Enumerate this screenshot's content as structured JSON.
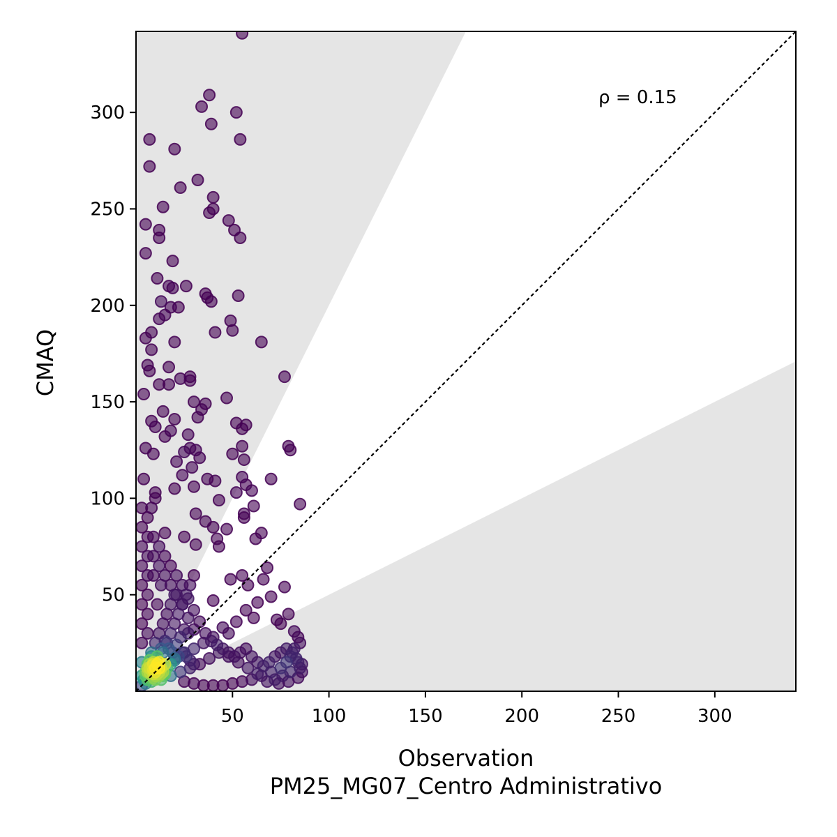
{
  "chart_data": {
    "type": "scatter",
    "xlabel": "Observation",
    "xlabel2": "PM25_MG07_Centro Administrativo",
    "ylabel": "CMAQ",
    "xlim": [
      0,
      342
    ],
    "ylim": [
      0,
      342
    ],
    "xticks": [
      50,
      100,
      150,
      200,
      250,
      300
    ],
    "yticks": [
      50,
      100,
      150,
      200,
      250,
      300
    ],
    "annotation": "ρ = 0.15",
    "reference_line": "1:1 dashed",
    "shaded_bands": "outside factor-of-2 envelope (y > 2x and y < x/2)",
    "colormap": "viridis (point density)",
    "colors": {
      "low_density": "#440154",
      "mid_density": "#21918c",
      "high_density": "#fde725",
      "shade": "#e5e5e5"
    },
    "points": [
      [
        55,
        341
      ],
      [
        38,
        309
      ],
      [
        34,
        303
      ],
      [
        52,
        300
      ],
      [
        39,
        294
      ],
      [
        7,
        286
      ],
      [
        54,
        286
      ],
      [
        20,
        281
      ],
      [
        7,
        272
      ],
      [
        32,
        265
      ],
      [
        23,
        261
      ],
      [
        40,
        256
      ],
      [
        14,
        251
      ],
      [
        40,
        250
      ],
      [
        38,
        248
      ],
      [
        48,
        244
      ],
      [
        5,
        242
      ],
      [
        51,
        239
      ],
      [
        12,
        239
      ],
      [
        12,
        235
      ],
      [
        54,
        235
      ],
      [
        5,
        227
      ],
      [
        19,
        223
      ],
      [
        11,
        214
      ],
      [
        26,
        210
      ],
      [
        17,
        210
      ],
      [
        19,
        209
      ],
      [
        36,
        206
      ],
      [
        37,
        204
      ],
      [
        53,
        205
      ],
      [
        39,
        202
      ],
      [
        13,
        202
      ],
      [
        18,
        199
      ],
      [
        22,
        199
      ],
      [
        12,
        193
      ],
      [
        49,
        192
      ],
      [
        15,
        195
      ],
      [
        50,
        187
      ],
      [
        41,
        186
      ],
      [
        8,
        186
      ],
      [
        65,
        181
      ],
      [
        20,
        181
      ],
      [
        5,
        183
      ],
      [
        8,
        177
      ],
      [
        6,
        169
      ],
      [
        17,
        168
      ],
      [
        7,
        166
      ],
      [
        77,
        163
      ],
      [
        28,
        163
      ],
      [
        23,
        162
      ],
      [
        28,
        161
      ],
      [
        12,
        159
      ],
      [
        17,
        159
      ],
      [
        4,
        154
      ],
      [
        47,
        152
      ],
      [
        30,
        150
      ],
      [
        36,
        149
      ],
      [
        34,
        146
      ],
      [
        14,
        145
      ],
      [
        32,
        142
      ],
      [
        52,
        139
      ],
      [
        57,
        138
      ],
      [
        20,
        141
      ],
      [
        8,
        140
      ],
      [
        55,
        136
      ],
      [
        10,
        137
      ],
      [
        18,
        135
      ],
      [
        27,
        133
      ],
      [
        15,
        132
      ],
      [
        79,
        127
      ],
      [
        80,
        125
      ],
      [
        5,
        126
      ],
      [
        9,
        123
      ],
      [
        55,
        127
      ],
      [
        28,
        126
      ],
      [
        31,
        125
      ],
      [
        25,
        124
      ],
      [
        33,
        121
      ],
      [
        56,
        120
      ],
      [
        21,
        119
      ],
      [
        50,
        123
      ],
      [
        29,
        116
      ],
      [
        37,
        110
      ],
      [
        70,
        110
      ],
      [
        41,
        109
      ],
      [
        24,
        112
      ],
      [
        55,
        111
      ],
      [
        57,
        107
      ],
      [
        60,
        104
      ],
      [
        52,
        103
      ],
      [
        43,
        99
      ],
      [
        85,
        97
      ],
      [
        30,
        106
      ],
      [
        20,
        105
      ],
      [
        10,
        103
      ],
      [
        61,
        96
      ],
      [
        56,
        92
      ],
      [
        56,
        90
      ],
      [
        36,
        88
      ],
      [
        31,
        92
      ],
      [
        40,
        85
      ],
      [
        47,
        84
      ],
      [
        65,
        82
      ],
      [
        62,
        79
      ],
      [
        42,
        79
      ],
      [
        43,
        75
      ],
      [
        31,
        76
      ],
      [
        25,
        80
      ],
      [
        15,
        82
      ],
      [
        68,
        64
      ],
      [
        66,
        58
      ],
      [
        58,
        55
      ],
      [
        49,
        58
      ],
      [
        55,
        60
      ],
      [
        77,
        54
      ],
      [
        70,
        49
      ],
      [
        40,
        47
      ],
      [
        63,
        46
      ],
      [
        57,
        42
      ],
      [
        61,
        38
      ],
      [
        73,
        37
      ],
      [
        75,
        35
      ],
      [
        79,
        40
      ],
      [
        52,
        36
      ],
      [
        45,
        33
      ],
      [
        48,
        30
      ],
      [
        40,
        28
      ],
      [
        35,
        25
      ],
      [
        30,
        22
      ],
      [
        25,
        20
      ],
      [
        20,
        17
      ],
      [
        15,
        14
      ],
      [
        82,
        31
      ],
      [
        84,
        28
      ],
      [
        85,
        25
      ],
      [
        82,
        22
      ],
      [
        80,
        18
      ],
      [
        78,
        15
      ],
      [
        75,
        12
      ],
      [
        70,
        10
      ],
      [
        65,
        8
      ],
      [
        60,
        6
      ],
      [
        55,
        5
      ],
      [
        50,
        4
      ],
      [
        45,
        3
      ],
      [
        40,
        3
      ],
      [
        35,
        3
      ],
      [
        30,
        4
      ],
      [
        25,
        5
      ],
      [
        85,
        12
      ],
      [
        84,
        15
      ],
      [
        80,
        10
      ],
      [
        76,
        8
      ],
      [
        72,
        6
      ],
      [
        68,
        5
      ],
      [
        63,
        9
      ],
      [
        58,
        12
      ],
      [
        53,
        15
      ],
      [
        48,
        18
      ],
      [
        43,
        20
      ],
      [
        38,
        17
      ],
      [
        33,
        14
      ],
      [
        28,
        12
      ],
      [
        23,
        10
      ],
      [
        18,
        8
      ],
      [
        13,
        6
      ],
      [
        8,
        5
      ],
      [
        5,
        4
      ],
      [
        3,
        3
      ],
      [
        10,
        10
      ],
      [
        12,
        15
      ],
      [
        14,
        20
      ],
      [
        16,
        25
      ],
      [
        18,
        30
      ],
      [
        20,
        35
      ],
      [
        22,
        40
      ],
      [
        24,
        45
      ],
      [
        26,
        50
      ],
      [
        28,
        55
      ],
      [
        30,
        60
      ],
      [
        6,
        30
      ],
      [
        6,
        40
      ],
      [
        6,
        50
      ],
      [
        6,
        60
      ],
      [
        6,
        70
      ],
      [
        6,
        80
      ],
      [
        6,
        90
      ],
      [
        8,
        95
      ],
      [
        10,
        100
      ],
      [
        4,
        110
      ],
      [
        3,
        95
      ],
      [
        3,
        85
      ],
      [
        3,
        75
      ],
      [
        3,
        65
      ],
      [
        3,
        55
      ],
      [
        3,
        45
      ],
      [
        3,
        35
      ],
      [
        3,
        25
      ],
      [
        3,
        15
      ],
      [
        3,
        8
      ],
      [
        9,
        60
      ],
      [
        9,
        70
      ],
      [
        9,
        80
      ],
      [
        12,
        75
      ],
      [
        12,
        65
      ],
      [
        15,
        70
      ],
      [
        15,
        60
      ],
      [
        18,
        65
      ],
      [
        18,
        55
      ],
      [
        21,
        60
      ],
      [
        21,
        50
      ],
      [
        24,
        55
      ],
      [
        24,
        45
      ],
      [
        27,
        48
      ],
      [
        27,
        38
      ],
      [
        30,
        42
      ],
      [
        30,
        32
      ],
      [
        33,
        36
      ],
      [
        36,
        30
      ],
      [
        39,
        26
      ],
      [
        42,
        24
      ],
      [
        45,
        22
      ],
      [
        48,
        20
      ],
      [
        51,
        18
      ],
      [
        54,
        20
      ],
      [
        57,
        22
      ],
      [
        60,
        18
      ],
      [
        63,
        15
      ],
      [
        66,
        13
      ],
      [
        69,
        15
      ],
      [
        72,
        18
      ],
      [
        75,
        20
      ],
      [
        78,
        22
      ],
      [
        81,
        20
      ],
      [
        83,
        17
      ],
      [
        86,
        14
      ],
      [
        86,
        10
      ],
      [
        84,
        7
      ],
      [
        79,
        5
      ],
      [
        74,
        4
      ],
      [
        12,
        12
      ],
      [
        14,
        10
      ],
      [
        16,
        12
      ],
      [
        18,
        14
      ],
      [
        20,
        16
      ],
      [
        22,
        18
      ],
      [
        24,
        20
      ],
      [
        26,
        18
      ],
      [
        28,
        16
      ],
      [
        30,
        14
      ],
      [
        8,
        20
      ],
      [
        10,
        25
      ],
      [
        12,
        30
      ],
      [
        14,
        35
      ],
      [
        16,
        40
      ],
      [
        18,
        45
      ],
      [
        20,
        50
      ],
      [
        11,
        45
      ],
      [
        13,
        55
      ],
      [
        7,
        10
      ],
      [
        9,
        14
      ],
      [
        11,
        18
      ],
      [
        13,
        22
      ],
      [
        15,
        26
      ],
      [
        17,
        22
      ],
      [
        19,
        20
      ],
      [
        21,
        24
      ],
      [
        23,
        28
      ],
      [
        25,
        32
      ],
      [
        27,
        30
      ],
      [
        4,
        6
      ],
      [
        5,
        8
      ],
      [
        6,
        10
      ],
      [
        7,
        12
      ],
      [
        8,
        13
      ],
      [
        9,
        15
      ],
      [
        10,
        12
      ],
      [
        11,
        14
      ],
      [
        12,
        10
      ],
      [
        13,
        12
      ],
      [
        6,
        6
      ],
      [
        7,
        7
      ],
      [
        8,
        8
      ],
      [
        9,
        9
      ],
      [
        10,
        8
      ],
      [
        6,
        12
      ],
      [
        7,
        14
      ],
      [
        8,
        11
      ],
      [
        9,
        7
      ],
      [
        10,
        6
      ],
      [
        5,
        10
      ],
      [
        6,
        14
      ],
      [
        7,
        16
      ],
      [
        8,
        18
      ],
      [
        9,
        11
      ],
      [
        11,
        9
      ],
      [
        12,
        8
      ],
      [
        13,
        9
      ],
      [
        14,
        8
      ],
      [
        15,
        9
      ]
    ]
  }
}
